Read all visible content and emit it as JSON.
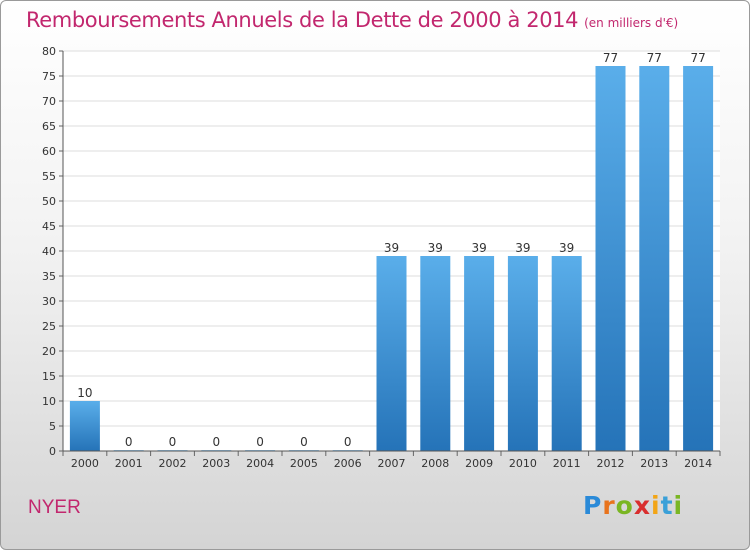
{
  "chart_data": {
    "type": "bar",
    "title": "Remboursements Annuels de la Dette de 2000 à 2014",
    "subtitle": "(en milliers d'€)",
    "categories": [
      "2000",
      "2001",
      "2002",
      "2003",
      "2004",
      "2005",
      "2006",
      "2007",
      "2008",
      "2009",
      "2010",
      "2011",
      "2012",
      "2013",
      "2014"
    ],
    "values": [
      10,
      0,
      0,
      0,
      0,
      0,
      0,
      39,
      39,
      39,
      39,
      39,
      77,
      77,
      77
    ],
    "ylim": [
      0,
      80
    ],
    "yticks": [
      0,
      5,
      10,
      15,
      20,
      25,
      30,
      35,
      40,
      45,
      50,
      55,
      60,
      65,
      70,
      75,
      80
    ],
    "grid": true,
    "bar_color": "#3d8fd6"
  },
  "footer": {
    "town": "NYER",
    "logo": {
      "letters": [
        "P",
        "r",
        "o",
        "x",
        "i",
        "t",
        "i"
      ],
      "colors": [
        "#2a8ad8",
        "#e8731c",
        "#7ab623",
        "#d92e2e",
        "#f2a516",
        "#3aa0d8",
        "#7ab623"
      ]
    }
  }
}
